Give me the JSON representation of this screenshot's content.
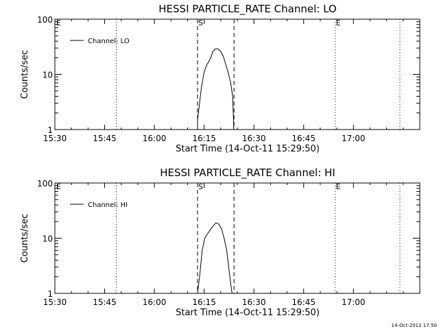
{
  "footer_timestamp": "14-Oct-2011 17:50",
  "chart_data": [
    {
      "type": "line",
      "title": "HESSI PARTICLE_RATE Channel: LO",
      "xlabel": "Start Time (14-Oct-11 15:29:50)",
      "ylabel": "Counts/sec",
      "y_scale": "log",
      "ylim": [
        1,
        100
      ],
      "y_tick_values": [
        1,
        10,
        100
      ],
      "y_tick_labels": [
        "1",
        "10",
        "100"
      ],
      "xlim_minutes": [
        0,
        110
      ],
      "x_tick_minutes": [
        0,
        15,
        30,
        45,
        60,
        75,
        90
      ],
      "x_tick_labels": [
        "15:30",
        "15:45",
        "16:00",
        "16:15",
        "16:30",
        "16:45",
        "17:00"
      ],
      "legend": {
        "position": "top-left",
        "label": "Channel: LO"
      },
      "series": [
        {
          "name": "Channel: LO",
          "x_minutes": [
            43,
            43.6,
            44.2,
            45,
            45.8,
            46.4,
            47,
            47.6,
            48.4,
            49.2,
            50,
            50.8,
            51.4,
            52.2,
            53,
            53.6,
            53.9
          ],
          "y": [
            1.5,
            3,
            6,
            11,
            15,
            17,
            20,
            26,
            29,
            29,
            26,
            21,
            16,
            11,
            7,
            4,
            1.2
          ]
        }
      ],
      "markers": [
        {
          "x_minutes": 18.5,
          "style": "dotted",
          "label": ""
        },
        {
          "x_minutes": 43,
          "style": "dashed",
          "label": "S"
        },
        {
          "x_minutes": 54,
          "style": "dashed",
          "label": ""
        },
        {
          "x_minutes": 84.5,
          "style": "dotted",
          "label": "E"
        },
        {
          "x_minutes": 104,
          "style": "dotted",
          "label": ""
        }
      ],
      "left_edge_label": "E"
    },
    {
      "type": "line",
      "title": "HESSI PARTICLE_RATE Channel: HI",
      "xlabel": "Start Time (14-Oct-11 15:29:50)",
      "ylabel": "Counts/sec",
      "y_scale": "log",
      "ylim": [
        1,
        100
      ],
      "y_tick_values": [
        1,
        10,
        100
      ],
      "y_tick_labels": [
        "1",
        "10",
        "100"
      ],
      "xlim_minutes": [
        0,
        110
      ],
      "x_tick_minutes": [
        0,
        15,
        30,
        45,
        60,
        75,
        90
      ],
      "x_tick_labels": [
        "15:30",
        "15:45",
        "16:00",
        "16:15",
        "16:30",
        "16:45",
        "17:00"
      ],
      "legend": {
        "position": "top-left",
        "label": "Channel: HI"
      },
      "series": [
        {
          "name": "Channel: HI",
          "x_minutes": [
            43,
            43.8,
            44.4,
            45.2,
            46,
            46.8,
            47.8,
            48.6,
            49.4,
            50.2,
            51,
            51.8,
            52.4,
            53,
            53.4
          ],
          "y": [
            1.0,
            2.5,
            6,
            10,
            12,
            14,
            17,
            19,
            18,
            15,
            10,
            6,
            3,
            1.5,
            1.0
          ]
        }
      ],
      "markers": [
        {
          "x_minutes": 18.5,
          "style": "dotted",
          "label": ""
        },
        {
          "x_minutes": 43,
          "style": "dashed",
          "label": "S"
        },
        {
          "x_minutes": 54,
          "style": "dashed",
          "label": ""
        },
        {
          "x_minutes": 84.5,
          "style": "dotted",
          "label": "E"
        },
        {
          "x_minutes": 104,
          "style": "dotted",
          "label": ""
        }
      ],
      "left_edge_label": "E"
    }
  ]
}
